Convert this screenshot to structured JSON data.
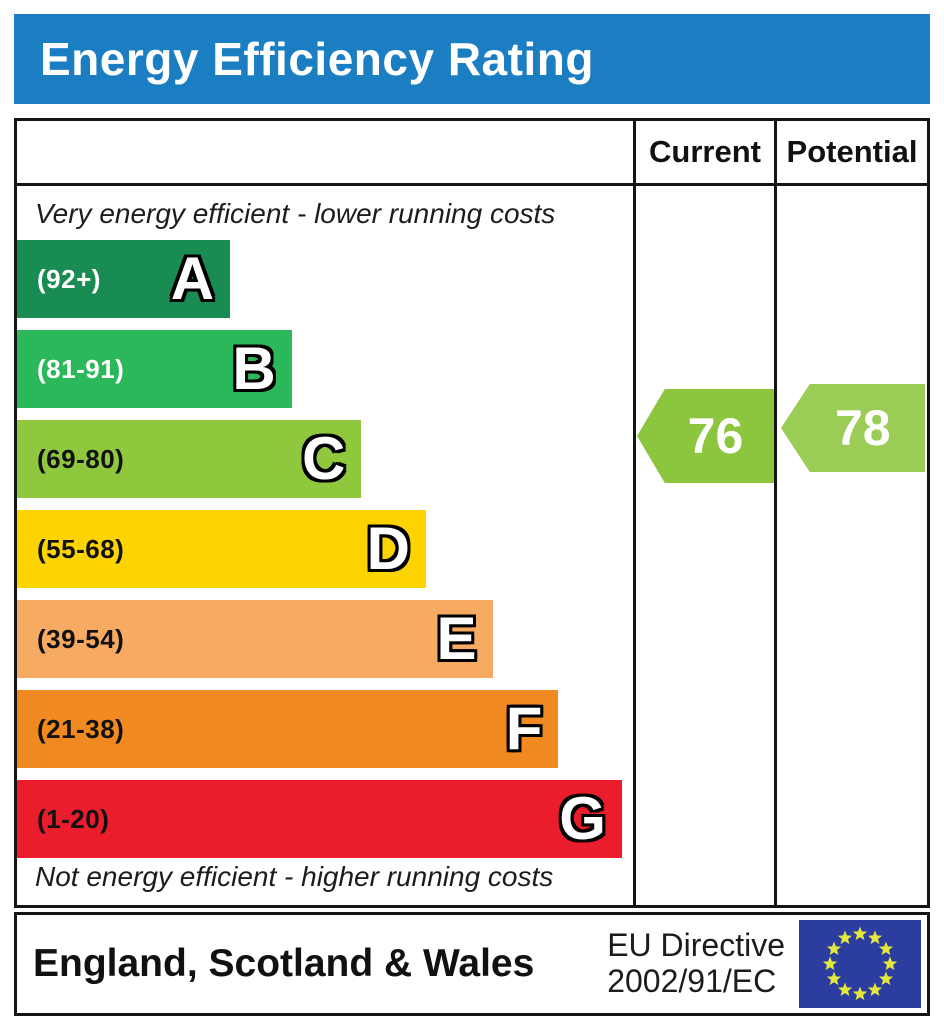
{
  "title": "Energy Efficiency Rating",
  "columns": {
    "current": "Current",
    "potential": "Potential"
  },
  "notes": {
    "top": "Very energy efficient - lower running costs",
    "bottom": "Not energy efficient - higher running costs"
  },
  "bands": [
    {
      "letter": "A",
      "range": "(92+)",
      "color": "#188c53",
      "range_text_color": "#ffffff",
      "width_pct": 34.6
    },
    {
      "letter": "B",
      "range": "(81-91)",
      "color": "#2ab85b",
      "range_text_color": "#ffffff",
      "width_pct": 44.6
    },
    {
      "letter": "C",
      "range": "(69-80)",
      "color": "#90c83d",
      "range_text_color": "#111111",
      "width_pct": 55.9
    },
    {
      "letter": "D",
      "range": "(55-68)",
      "color": "#fdd401",
      "range_text_color": "#111111",
      "width_pct": 66.4
    },
    {
      "letter": "E",
      "range": "(39-54)",
      "color": "#f7aa61",
      "range_text_color": "#111111",
      "width_pct": 77.2
    },
    {
      "letter": "F",
      "range": "(21-38)",
      "color": "#f0891f",
      "range_text_color": "#111111",
      "width_pct": 87.9
    },
    {
      "letter": "G",
      "range": "(1-20)",
      "color": "#eb1c2c",
      "range_text_color": "#111111",
      "width_pct": 98.2
    }
  ],
  "ratings": {
    "current": {
      "value": "76",
      "band": "C",
      "color": "#8cc63f"
    },
    "potential": {
      "value": "78",
      "band": "C",
      "color": "#9bcc55"
    }
  },
  "footer": {
    "region": "England, Scotland & Wales",
    "directive_line1": "EU Directive",
    "directive_line2": "2002/91/EC",
    "eu_flag": {
      "blue": "#2c3da0",
      "star_yellow": "#e4e73c"
    }
  },
  "theme": {
    "title_bar_blue": "#1b7dc2",
    "border_black": "#141414"
  },
  "chart_data": {
    "type": "bar",
    "title": "Energy Efficiency Rating",
    "categories": [
      "A",
      "B",
      "C",
      "D",
      "E",
      "F",
      "G"
    ],
    "band_ranges": [
      "92+",
      "81-91",
      "69-80",
      "55-68",
      "39-54",
      "21-38",
      "1-20"
    ],
    "band_colors": [
      "#188c53",
      "#2ab85b",
      "#90c83d",
      "#fdd401",
      "#f7aa61",
      "#f0891f",
      "#eb1c2c"
    ],
    "values": [
      34.6,
      44.6,
      55.9,
      66.4,
      77.2,
      87.9,
      98.2
    ],
    "values_note": "bar length as % of chart column width (fixed decorative EPC scale)",
    "current_rating": 76,
    "current_band": "C",
    "potential_rating": 78,
    "potential_band": "C",
    "columns": [
      "Current",
      "Potential"
    ],
    "top_annotation": "Very energy efficient - lower running costs",
    "bottom_annotation": "Not energy efficient - higher running costs",
    "footer_left": "England, Scotland & Wales",
    "footer_right": "EU Directive 2002/91/EC"
  }
}
